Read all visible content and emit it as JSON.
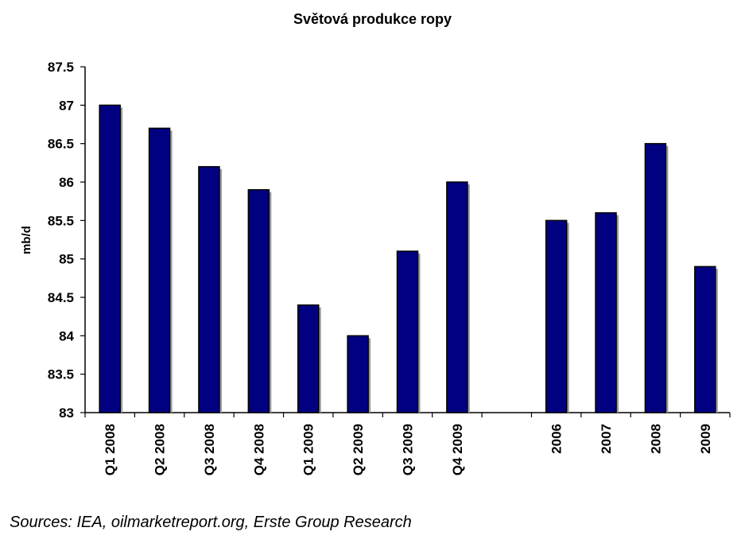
{
  "chart_data": {
    "type": "bar",
    "title": "Světová produkce ropy",
    "ylabel": "mb/d",
    "xlabel": "",
    "ylim": [
      83,
      87.5
    ],
    "yticks": [
      "83",
      "83.5",
      "84",
      "84.5",
      "85",
      "85.5",
      "86",
      "86.5",
      "87",
      "87.5"
    ],
    "categories": [
      "Q1 2008",
      "Q2 2008",
      "Q3 2008",
      "Q4 2008",
      "Q1 2009",
      "Q2 2009",
      "Q3 2009",
      "Q4 2009",
      "",
      "2006",
      "2007",
      "2008",
      "2009"
    ],
    "values": [
      87.0,
      86.7,
      86.2,
      85.9,
      84.4,
      84.0,
      85.1,
      86.0,
      null,
      85.5,
      85.6,
      86.5,
      84.9
    ],
    "bar_color": "#000080",
    "grid": false,
    "legend": "none"
  },
  "source_note": "Sources: IEA, oilmarketreport.org, Erste Group Research"
}
